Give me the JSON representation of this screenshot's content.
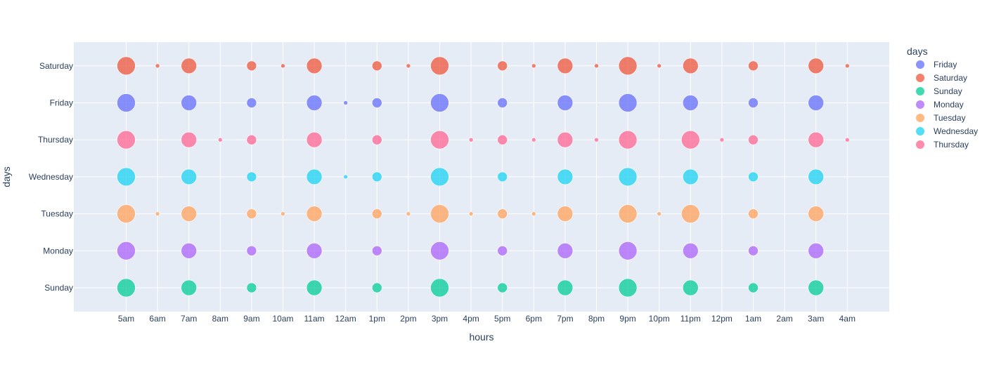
{
  "chart_data": {
    "type": "scatter",
    "xlabel": "hours",
    "ylabel": "days",
    "x_categories": [
      "5am",
      "6am",
      "7am",
      "8am",
      "9am",
      "10am",
      "11am",
      "12am",
      "1pm",
      "2pm",
      "3pm",
      "4pm",
      "5pm",
      "6pm",
      "7pm",
      "8pm",
      "9pm",
      "10pm",
      "11pm",
      "12pm",
      "1am",
      "2am",
      "3am",
      "4am"
    ],
    "y_categories": [
      "Sunday",
      "Monday",
      "Tuesday",
      "Wednesday",
      "Thursday",
      "Friday",
      "Saturday"
    ],
    "legend": {
      "title": "days",
      "placement": "right"
    },
    "grid": true,
    "series": [
      {
        "name": "Friday",
        "color": "#636efa",
        "points": [
          [
            "5am",
            5
          ],
          [
            "7am",
            4
          ],
          [
            "9am",
            2
          ],
          [
            "11am",
            4
          ],
          [
            "12am",
            1
          ],
          [
            "1pm",
            2
          ],
          [
            "3pm",
            5
          ],
          [
            "5pm",
            2
          ],
          [
            "7pm",
            4
          ],
          [
            "9pm",
            5
          ],
          [
            "11pm",
            4
          ],
          [
            "1am",
            2
          ],
          [
            "3am",
            4
          ]
        ]
      },
      {
        "name": "Saturday",
        "color": "#EF553B",
        "points": [
          [
            "5am",
            5
          ],
          [
            "6am",
            1
          ],
          [
            "7am",
            4
          ],
          [
            "9am",
            2
          ],
          [
            "10am",
            1
          ],
          [
            "11am",
            4
          ],
          [
            "1pm",
            2
          ],
          [
            "2pm",
            1
          ],
          [
            "3pm",
            5
          ],
          [
            "5pm",
            2
          ],
          [
            "6pm",
            1
          ],
          [
            "7pm",
            4
          ],
          [
            "8pm",
            1
          ],
          [
            "9pm",
            5
          ],
          [
            "10pm",
            1
          ],
          [
            "11pm",
            4
          ],
          [
            "1am",
            2
          ],
          [
            "3am",
            4
          ],
          [
            "4am",
            1
          ]
        ]
      },
      {
        "name": "Sunday",
        "color": "#00cc96",
        "points": [
          [
            "5am",
            5
          ],
          [
            "7am",
            4
          ],
          [
            "9am",
            2
          ],
          [
            "11am",
            4
          ],
          [
            "1pm",
            2
          ],
          [
            "3pm",
            5
          ],
          [
            "5pm",
            2
          ],
          [
            "7pm",
            4
          ],
          [
            "9pm",
            5
          ],
          [
            "11pm",
            4
          ],
          [
            "1am",
            2
          ],
          [
            "3am",
            4
          ]
        ]
      },
      {
        "name": "Monday",
        "color": "#ab63fa",
        "points": [
          [
            "5am",
            5
          ],
          [
            "7am",
            4
          ],
          [
            "9am",
            2
          ],
          [
            "11am",
            4
          ],
          [
            "1pm",
            2
          ],
          [
            "3pm",
            5
          ],
          [
            "5pm",
            2
          ],
          [
            "7pm",
            4
          ],
          [
            "9pm",
            5
          ],
          [
            "11pm",
            4
          ],
          [
            "1am",
            2
          ],
          [
            "3am",
            4
          ]
        ]
      },
      {
        "name": "Tuesday",
        "color": "#FFA15A",
        "points": [
          [
            "5am",
            5
          ],
          [
            "6am",
            1
          ],
          [
            "7am",
            4
          ],
          [
            "9am",
            2
          ],
          [
            "10am",
            1
          ],
          [
            "11am",
            4
          ],
          [
            "1pm",
            2
          ],
          [
            "2pm",
            1
          ],
          [
            "3pm",
            5
          ],
          [
            "4pm",
            1
          ],
          [
            "5pm",
            2
          ],
          [
            "6pm",
            1
          ],
          [
            "7pm",
            4
          ],
          [
            "9pm",
            5
          ],
          [
            "10pm",
            1
          ],
          [
            "11pm",
            5
          ],
          [
            "1am",
            2
          ],
          [
            "3am",
            4
          ]
        ]
      },
      {
        "name": "Wednesday",
        "color": "#19d3f3",
        "points": [
          [
            "5am",
            5
          ],
          [
            "7am",
            4
          ],
          [
            "9am",
            2
          ],
          [
            "11am",
            4
          ],
          [
            "12am",
            1
          ],
          [
            "1pm",
            2
          ],
          [
            "3pm",
            5
          ],
          [
            "5pm",
            2
          ],
          [
            "7pm",
            4
          ],
          [
            "9pm",
            5
          ],
          [
            "11pm",
            4
          ],
          [
            "1am",
            2
          ],
          [
            "3am",
            4
          ]
        ]
      },
      {
        "name": "Thursday",
        "color": "#FF6692",
        "points": [
          [
            "5am",
            5
          ],
          [
            "7am",
            4
          ],
          [
            "8am",
            1
          ],
          [
            "9am",
            2
          ],
          [
            "11am",
            4
          ],
          [
            "1pm",
            2
          ],
          [
            "3pm",
            5
          ],
          [
            "4pm",
            1
          ],
          [
            "5pm",
            2
          ],
          [
            "6pm",
            1
          ],
          [
            "7pm",
            4
          ],
          [
            "8pm",
            1
          ],
          [
            "9pm",
            5
          ],
          [
            "11pm",
            5
          ],
          [
            "12pm",
            1
          ],
          [
            "1am",
            2
          ],
          [
            "3am",
            4
          ],
          [
            "4am",
            1
          ]
        ]
      }
    ]
  }
}
